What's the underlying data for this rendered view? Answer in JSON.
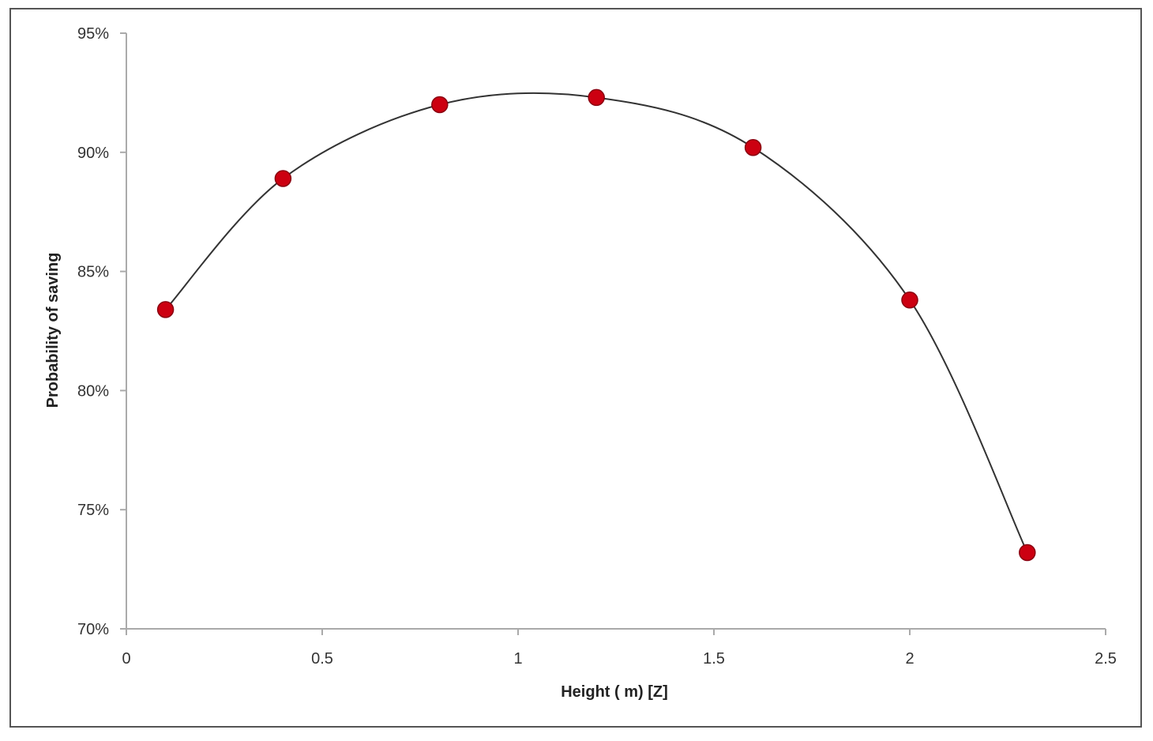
{
  "chart_data": {
    "type": "scatter",
    "title": "",
    "xlabel": "Height ( m) [Z]",
    "ylabel": "Probability of saving",
    "xlim": [
      0,
      2.5
    ],
    "ylim": [
      0.7,
      0.95
    ],
    "x_ticks": [
      {
        "value": 0,
        "label": "0"
      },
      {
        "value": 0.5,
        "label": "0.5"
      },
      {
        "value": 1,
        "label": "1"
      },
      {
        "value": 1.5,
        "label": "1.5"
      },
      {
        "value": 2,
        "label": "2"
      },
      {
        "value": 2.5,
        "label": "2.5"
      }
    ],
    "y_ticks": [
      {
        "value": 0.7,
        "label": "70%"
      },
      {
        "value": 0.75,
        "label": "75%"
      },
      {
        "value": 0.8,
        "label": "80%"
      },
      {
        "value": 0.85,
        "label": "85%"
      },
      {
        "value": 0.9,
        "label": "90%"
      },
      {
        "value": 0.95,
        "label": "95%"
      }
    ],
    "grid": false,
    "legend": "none",
    "series": [
      {
        "x": [
          0.1,
          0.4,
          0.8,
          1.2,
          1.6,
          2.0,
          2.3
        ],
        "y": [
          0.834,
          0.889,
          0.92,
          0.923,
          0.902,
          0.838,
          0.732
        ],
        "marker_color": "#cc0011",
        "line_color": "#333333",
        "line": "smooth-trend"
      }
    ]
  }
}
